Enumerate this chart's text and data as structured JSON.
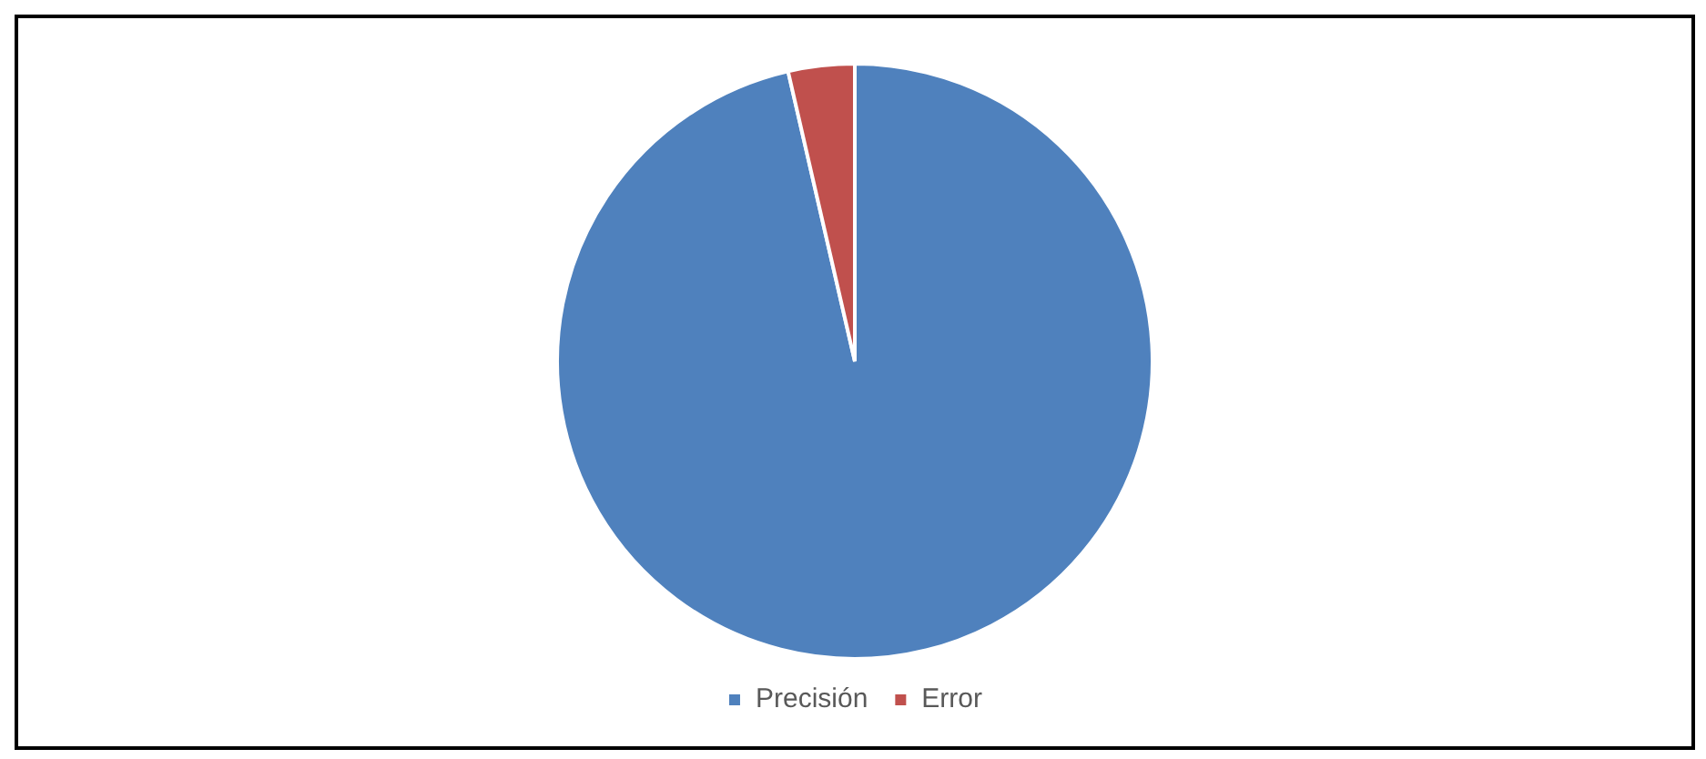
{
  "chart_data": {
    "type": "pie",
    "categories": [
      "Precisión",
      "Error"
    ],
    "values": [
      96.4,
      3.6
    ],
    "colors": [
      "#4f81bd",
      "#c0504d"
    ],
    "legend": "bottom"
  }
}
